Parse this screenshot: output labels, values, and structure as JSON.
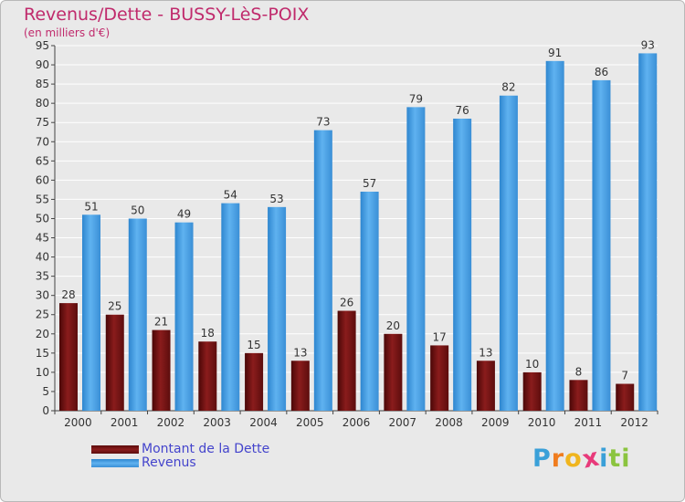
{
  "chart_data": {
    "type": "bar",
    "title": "Revenus/Dette - BUSSY-LèS-POIX",
    "subtitle": "(en milliers d'€)",
    "categories": [
      "2000",
      "2001",
      "2002",
      "2003",
      "2004",
      "2005",
      "2006",
      "2007",
      "2008",
      "2009",
      "2010",
      "2011",
      "2012"
    ],
    "series": [
      {
        "name": "Montant de la Dette",
        "color": "#7a1515",
        "values": [
          28,
          25,
          21,
          18,
          15,
          13,
          26,
          20,
          17,
          13,
          10,
          8,
          7
        ]
      },
      {
        "name": "Revenus",
        "color": "#4ea3e6",
        "values": [
          51,
          50,
          49,
          54,
          53,
          73,
          57,
          79,
          76,
          82,
          91,
          86,
          93
        ]
      }
    ],
    "ylim": [
      0,
      95
    ],
    "yticks": [
      0,
      5,
      10,
      15,
      20,
      25,
      30,
      35,
      40,
      45,
      50,
      55,
      60,
      65,
      70,
      75,
      80,
      85,
      90,
      95
    ],
    "grid": true,
    "legend_position": "bottom-left"
  },
  "logo": {
    "letters": [
      "P",
      "r",
      "o",
      "x",
      "i",
      "t",
      "i"
    ],
    "colors": [
      "#3aa0d8",
      "#f07c1e",
      "#f0b51e",
      "#e83a7a",
      "#3aa0d8",
      "#8bc43f",
      "#8bc43f"
    ]
  }
}
